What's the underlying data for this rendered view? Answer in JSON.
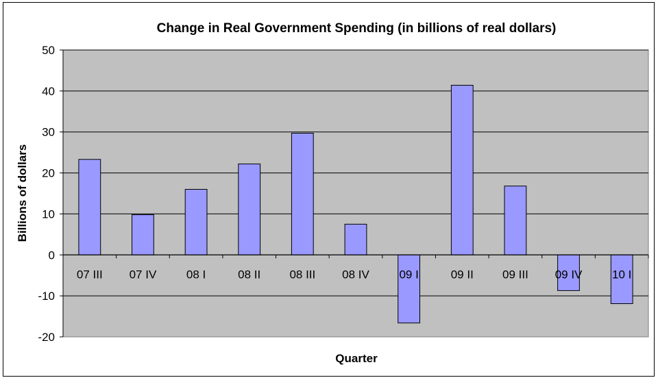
{
  "chart_data": {
    "type": "bar",
    "title": "Change in Real Government Spending (in billions of real dollars)",
    "xlabel": "Quarter",
    "ylabel": "Billions of dollars",
    "categories": [
      "07 III",
      "07 IV",
      "08 I",
      "08 II",
      "08 III",
      "08 IV",
      "09 I",
      "09 II",
      "09 III",
      "09 IV",
      "10 I"
    ],
    "values": [
      23.3,
      9.8,
      16.0,
      22.2,
      29.7,
      7.5,
      -16.6,
      41.4,
      16.8,
      -8.7,
      -11.9
    ],
    "ylim": [
      -20,
      50
    ],
    "yticks": [
      -20,
      -10,
      0,
      10,
      20,
      30,
      40,
      50
    ],
    "grid": true,
    "legend": "none",
    "colors": {
      "bar_fill": "#9999ff",
      "bar_stroke": "#000000",
      "plot_background": "#c0c0c0",
      "gridline": "#000000"
    }
  }
}
